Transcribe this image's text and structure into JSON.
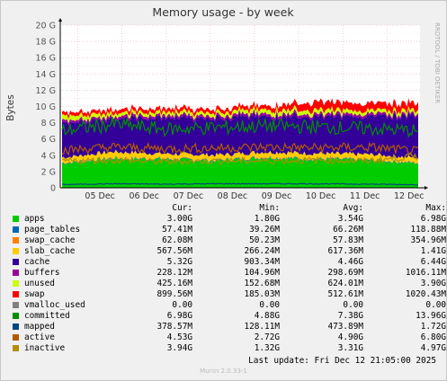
{
  "chart_data": {
    "type": "area",
    "title": "Memory usage - by week",
    "ylabel": "Bytes",
    "side_label": "RRDTOOL / TOBI OETIKER",
    "ylim": [
      0,
      20
    ],
    "y_unit": "G",
    "yticks": [
      "0",
      "2 G",
      "4 G",
      "6 G",
      "8 G",
      "10 G",
      "12 G",
      "14 G",
      "16 G",
      "18 G",
      "20 G"
    ],
    "x_labels": [
      "05 Dec",
      "06 Dec",
      "07 Dec",
      "08 Dec",
      "09 Dec",
      "10 Dec",
      "11 Dec",
      "12 Dec"
    ],
    "series": [
      {
        "name": "apps",
        "color": "#00cc00",
        "style": "area",
        "values": [
          3.0,
          3.6,
          3.5,
          3.3,
          3.7,
          3.5,
          3.4,
          3.0
        ]
      },
      {
        "name": "page_tables",
        "color": "#0066b3",
        "style": "area",
        "values": [
          0.06,
          0.07,
          0.06,
          0.07,
          0.07,
          0.06,
          0.07,
          0.06
        ]
      },
      {
        "name": "swap_cache",
        "color": "#ff8000",
        "style": "area",
        "values": [
          0.06,
          0.06,
          0.05,
          0.06,
          0.06,
          0.06,
          0.06,
          0.06
        ]
      },
      {
        "name": "slab_cache",
        "color": "#ffcc00",
        "style": "area",
        "values": [
          0.6,
          0.7,
          0.6,
          0.6,
          0.6,
          0.6,
          0.6,
          0.57
        ]
      },
      {
        "name": "cache",
        "color": "#330099",
        "style": "area",
        "values": [
          4.2,
          4.1,
          4.4,
          4.6,
          4.5,
          4.5,
          4.6,
          5.3
        ]
      },
      {
        "name": "buffers",
        "color": "#990099",
        "style": "area",
        "values": [
          0.3,
          0.3,
          0.3,
          0.3,
          0.3,
          0.3,
          0.3,
          0.23
        ]
      },
      {
        "name": "unused",
        "color": "#ccff00",
        "style": "area",
        "values": [
          0.6,
          0.4,
          0.4,
          0.4,
          0.5,
          0.5,
          0.4,
          0.43
        ]
      },
      {
        "name": "swap",
        "color": "#ff0000",
        "style": "area",
        "values": [
          0.4,
          0.45,
          0.45,
          0.45,
          0.5,
          1.0,
          0.9,
          0.9
        ]
      },
      {
        "name": "vmalloc_used",
        "color": "#808080",
        "style": "area",
        "values": [
          0,
          0,
          0,
          0,
          0,
          0,
          0,
          0
        ]
      },
      {
        "name": "committed",
        "color": "#008f00",
        "style": "line",
        "values": [
          7.0,
          7.8,
          7.2,
          7.4,
          7.6,
          7.5,
          7.3,
          7.0
        ]
      },
      {
        "name": "mapped",
        "color": "#00487d",
        "style": "line",
        "values": [
          0.4,
          0.5,
          0.45,
          0.5,
          0.5,
          0.5,
          0.45,
          0.38
        ]
      },
      {
        "name": "active",
        "color": "#b35a00",
        "style": "line",
        "values": [
          4.6,
          5.0,
          4.8,
          4.9,
          5.0,
          4.9,
          5.0,
          4.5
        ]
      },
      {
        "name": "inactive",
        "color": "#b38f00",
        "style": "line",
        "values": [
          3.3,
          3.4,
          3.2,
          3.3,
          3.3,
          3.4,
          3.3,
          3.9
        ]
      }
    ]
  },
  "legend": {
    "headers": {
      "cur": "Cur:",
      "min": "Min:",
      "avg": "Avg:",
      "max": "Max:"
    },
    "rows": [
      {
        "name": "apps",
        "color": "#00cc00",
        "cur": "3.00G",
        "min": "1.80G",
        "avg": "3.54G",
        "max": "6.98G"
      },
      {
        "name": "page_tables",
        "color": "#0066b3",
        "cur": "57.41M",
        "min": "39.26M",
        "avg": "66.26M",
        "max": "118.88M"
      },
      {
        "name": "swap_cache",
        "color": "#ff8000",
        "cur": "62.08M",
        "min": "50.23M",
        "avg": "57.83M",
        "max": "354.96M"
      },
      {
        "name": "slab_cache",
        "color": "#ffcc00",
        "cur": "567.56M",
        "min": "266.24M",
        "avg": "617.36M",
        "max": "1.41G"
      },
      {
        "name": "cache",
        "color": "#330099",
        "cur": "5.32G",
        "min": "903.34M",
        "avg": "4.46G",
        "max": "6.44G"
      },
      {
        "name": "buffers",
        "color": "#990099",
        "cur": "228.12M",
        "min": "104.96M",
        "avg": "298.69M",
        "max": "1016.11M"
      },
      {
        "name": "unused",
        "color": "#ccff00",
        "cur": "425.16M",
        "min": "152.68M",
        "avg": "624.01M",
        "max": "3.90G"
      },
      {
        "name": "swap",
        "color": "#ff0000",
        "cur": "899.56M",
        "min": "185.03M",
        "avg": "512.61M",
        "max": "1020.43M"
      },
      {
        "name": "vmalloc_used",
        "color": "#808080",
        "cur": "0.00",
        "min": "0.00",
        "avg": "0.00",
        "max": "0.00"
      },
      {
        "name": "committed",
        "color": "#008f00",
        "cur": "6.98G",
        "min": "4.88G",
        "avg": "7.38G",
        "max": "13.96G"
      },
      {
        "name": "mapped",
        "color": "#00487d",
        "cur": "378.57M",
        "min": "128.11M",
        "avg": "473.89M",
        "max": "1.72G"
      },
      {
        "name": "active",
        "color": "#b35a00",
        "cur": "4.53G",
        "min": "2.72G",
        "avg": "4.90G",
        "max": "6.80G"
      },
      {
        "name": "inactive",
        "color": "#b38f00",
        "cur": "3.94G",
        "min": "1.32G",
        "avg": "3.31G",
        "max": "4.97G"
      }
    ]
  },
  "footer": {
    "last_update": "Last update:  Fri Dec 12 21:05:00 2025",
    "generator": "Munin 2.0.33-1"
  }
}
